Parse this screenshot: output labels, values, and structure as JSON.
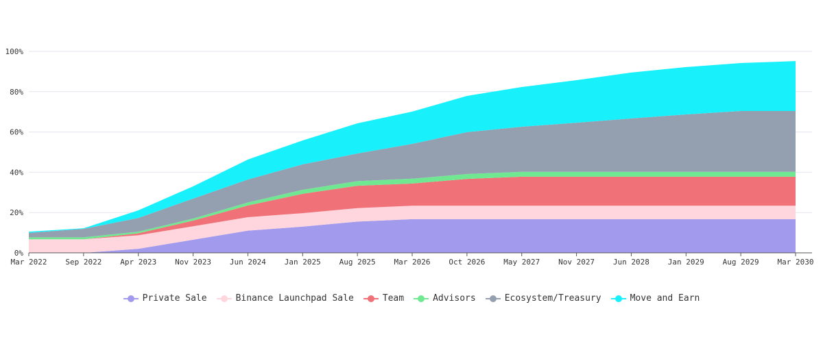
{
  "chart_data": {
    "type": "stacked-area",
    "categories": [
      "Mar 2022",
      "Sep 2022",
      "Apr 2023",
      "Nov 2023",
      "Jun 2024",
      "Jan 2025",
      "Aug 2025",
      "Mar 2026",
      "Oct 2026",
      "May 2027",
      "Nov 2027",
      "Jun 2028",
      "Jan 2029",
      "Aug 2029",
      "Mar 2030"
    ],
    "ylim": [
      0,
      100
    ],
    "yticks": [
      {
        "value": 0,
        "label": "0%"
      },
      {
        "value": 20,
        "label": "20%"
      },
      {
        "value": 40,
        "label": "40%"
      },
      {
        "value": 60,
        "label": "60%"
      },
      {
        "value": 80,
        "label": "80%"
      },
      {
        "value": 100,
        "label": "100%"
      }
    ],
    "grid": true,
    "legend": "bottom",
    "series": [
      {
        "name": "Private Sale",
        "color": "#a29bed",
        "values": [
          0,
          0,
          2,
          6.5,
          11,
          13,
          15.5,
          16.7,
          16.7,
          16.7,
          16.7,
          16.7,
          16.7,
          16.7,
          16.7
        ]
      },
      {
        "name": "Binance Launchpad Sale",
        "color": "#ffd6dd",
        "values": [
          6.7,
          6.7,
          6.7,
          6.7,
          6.7,
          6.7,
          6.7,
          6.7,
          6.7,
          6.7,
          6.7,
          6.7,
          6.7,
          6.7,
          6.7
        ]
      },
      {
        "name": "Team",
        "color": "#f07178",
        "values": [
          0,
          0,
          1,
          2.8,
          5.8,
          9.6,
          11.1,
          11,
          13.3,
          14.4,
          14.4,
          14.4,
          14.4,
          14.4,
          14.4
        ]
      },
      {
        "name": "Advisors",
        "color": "#70e891",
        "values": [
          1,
          1,
          0.8,
          1,
          1.5,
          2,
          2.3,
          2.4,
          2.4,
          2.4,
          2.4,
          2.4,
          2.4,
          2.4,
          2.4
        ]
      },
      {
        "name": "Ecosystem/Treasury",
        "color": "#94a0b0",
        "values": [
          2.2,
          4.2,
          6.8,
          9.9,
          11.4,
          12.6,
          13.7,
          17.3,
          20.8,
          22.4,
          24.4,
          26.5,
          28.5,
          30.2,
          30.2
        ]
      },
      {
        "name": "Move and Earn",
        "color": "#18f0fc",
        "values": [
          0.6,
          0.3,
          3.8,
          6.1,
          9.9,
          11.9,
          15,
          16,
          18,
          19.7,
          21.1,
          22.8,
          23.5,
          23.8,
          24.8
        ]
      }
    ]
  }
}
